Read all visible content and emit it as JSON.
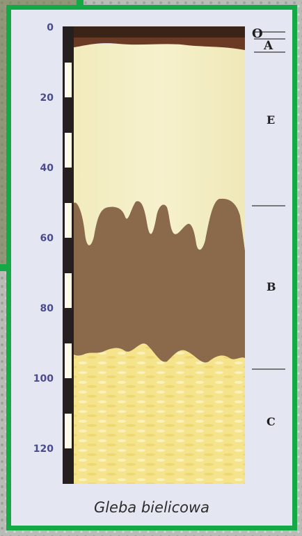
{
  "caption": "Gleba bielicowa",
  "depth_axis": {
    "ticks": [
      "0",
      "20",
      "40",
      "60",
      "80",
      "100",
      "120"
    ]
  },
  "horizons": [
    {
      "label": "O",
      "color": "#3a2418"
    },
    {
      "label": "A",
      "color": "#6b3a24"
    },
    {
      "label": "E",
      "color": "#f3eec2"
    },
    {
      "label": "B",
      "color": "#8a6a4b"
    },
    {
      "label": "C",
      "color": "#f6e48d"
    }
  ],
  "colors": {
    "frame": "#14a847",
    "panel": "#e4e6f1",
    "ruler_dark": "#25201f",
    "ruler_light": "#fdfbe9"
  }
}
